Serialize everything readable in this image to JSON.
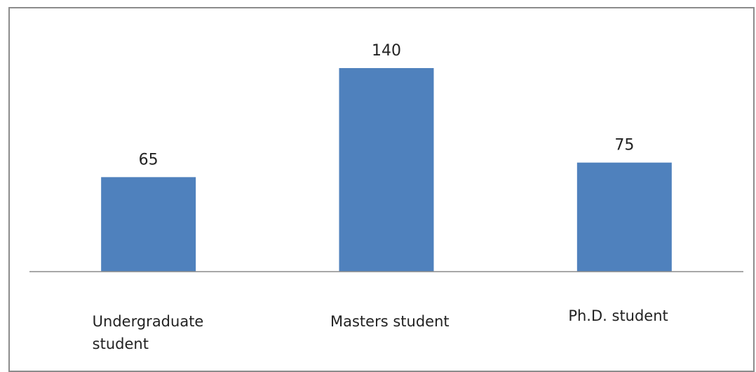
{
  "chart_data": {
    "type": "bar",
    "categories": [
      "Undergraduate student",
      "Masters student",
      "Ph.D. student"
    ],
    "category_lines": [
      [
        "Undergraduate",
        "student"
      ],
      [
        "Masters student"
      ],
      [
        "Ph.D. student"
      ]
    ],
    "values": [
      65,
      140,
      75
    ],
    "data_labels": [
      "65",
      "140",
      "75"
    ],
    "title": "",
    "xlabel": "",
    "ylabel": "",
    "ylim": [
      0,
      140
    ],
    "grid": false,
    "legend": "none",
    "bar_color": "#4F81BD",
    "axis_color": "#8C8C8C"
  }
}
